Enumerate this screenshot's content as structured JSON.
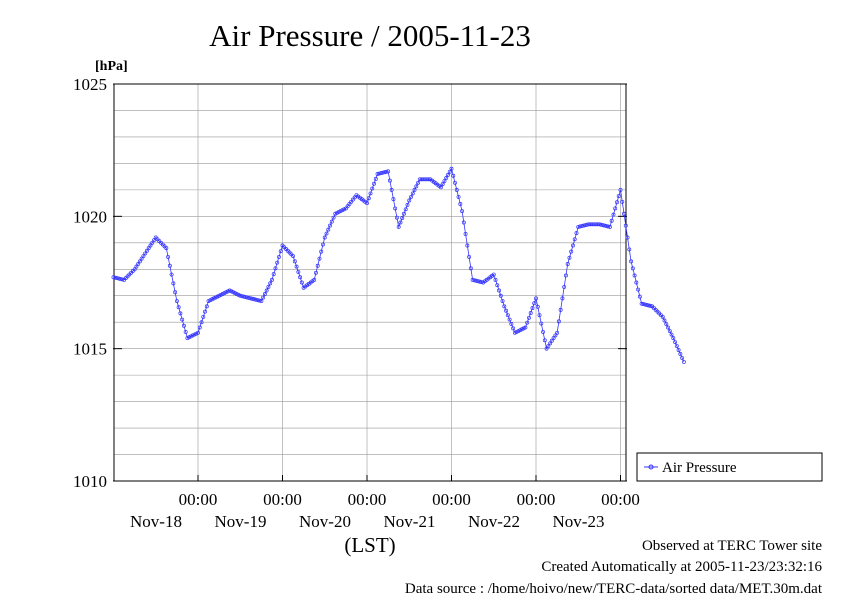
{
  "chart_data": {
    "type": "line",
    "title": "Air Pressure / 2005-11-23",
    "ylabel": "[hPa]",
    "xlabel": "(LST)",
    "ylim": [
      1010,
      1025
    ],
    "yticks": [
      {
        "value": 1010,
        "label": "1010"
      },
      {
        "value": 1015,
        "label": "1015"
      },
      {
        "value": 1020,
        "label": "1020"
      },
      {
        "value": 1025,
        "label": "1025"
      }
    ],
    "xticks": [
      {
        "time": "00:00",
        "date": "Nov-18"
      },
      {
        "time": "00:00",
        "date": "Nov-19"
      },
      {
        "time": "00:00",
        "date": "Nov-20"
      },
      {
        "time": "00:00",
        "date": "Nov-21"
      },
      {
        "time": "00:00",
        "date": "Nov-22"
      },
      {
        "time": "00:00",
        "date": "Nov-23"
      }
    ],
    "grid": true,
    "legend": "right",
    "color": "#3333ff",
    "series": [
      {
        "name": "Air Pressure",
        "points": [
          [
            "Nov-17 00:00",
            1017.7
          ],
          [
            "Nov-17 03:00",
            1017.6
          ],
          [
            "Nov-17 06:00",
            1018.0
          ],
          [
            "Nov-17 09:00",
            1018.6
          ],
          [
            "Nov-17 12:00",
            1019.2
          ],
          [
            "Nov-17 15:00",
            1018.8
          ],
          [
            "Nov-17 18:00",
            1016.8
          ],
          [
            "Nov-17 21:00",
            1015.4
          ],
          [
            "Nov-18 00:00",
            1015.6
          ],
          [
            "Nov-18 03:00",
            1016.8
          ],
          [
            "Nov-18 06:00",
            1017.0
          ],
          [
            "Nov-18 09:00",
            1017.2
          ],
          [
            "Nov-18 12:00",
            1017.0
          ],
          [
            "Nov-18 15:00",
            1016.9
          ],
          [
            "Nov-18 18:00",
            1016.8
          ],
          [
            "Nov-18 21:00",
            1017.6
          ],
          [
            "Nov-19 00:00",
            1018.9
          ],
          [
            "Nov-19 03:00",
            1018.5
          ],
          [
            "Nov-19 06:00",
            1017.3
          ],
          [
            "Nov-19 09:00",
            1017.6
          ],
          [
            "Nov-19 12:00",
            1019.2
          ],
          [
            "Nov-19 15:00",
            1020.1
          ],
          [
            "Nov-19 18:00",
            1020.3
          ],
          [
            "Nov-19 21:00",
            1020.8
          ],
          [
            "Nov-20 00:00",
            1020.5
          ],
          [
            "Nov-20 03:00",
            1021.6
          ],
          [
            "Nov-20 06:00",
            1021.7
          ],
          [
            "Nov-20 09:00",
            1019.6
          ],
          [
            "Nov-20 12:00",
            1020.6
          ],
          [
            "Nov-20 15:00",
            1021.4
          ],
          [
            "Nov-20 18:00",
            1021.4
          ],
          [
            "Nov-20 21:00",
            1021.1
          ],
          [
            "Nov-21 00:00",
            1021.8
          ],
          [
            "Nov-21 03:00",
            1020.2
          ],
          [
            "Nov-21 06:00",
            1017.6
          ],
          [
            "Nov-21 09:00",
            1017.5
          ],
          [
            "Nov-21 12:00",
            1017.8
          ],
          [
            "Nov-21 15:00",
            1016.6
          ],
          [
            "Nov-21 18:00",
            1015.6
          ],
          [
            "Nov-21 21:00",
            1015.8
          ],
          [
            "Nov-22 00:00",
            1016.9
          ],
          [
            "Nov-22 03:00",
            1015.0
          ],
          [
            "Nov-22 06:00",
            1015.6
          ],
          [
            "Nov-22 09:00",
            1018.2
          ],
          [
            "Nov-22 12:00",
            1019.6
          ],
          [
            "Nov-22 15:00",
            1019.7
          ],
          [
            "Nov-22 18:00",
            1019.7
          ],
          [
            "Nov-22 21:00",
            1019.6
          ],
          [
            "Nov-23 00:00",
            1021.0
          ],
          [
            "Nov-23 03:00",
            1018.3
          ],
          [
            "Nov-23 06:00",
            1016.7
          ],
          [
            "Nov-23 09:00",
            1016.6
          ],
          [
            "Nov-23 12:00",
            1016.2
          ],
          [
            "Nov-23 15:00",
            1015.4
          ],
          [
            "Nov-23 18:00",
            1014.5
          ]
        ]
      }
    ]
  },
  "footer": {
    "site": "Observed at TERC Tower site",
    "created": "Created Automatically at 2005-11-23/23:32:16",
    "source": "Data source : /home/hoivo/new/TERC-data/sorted  data/MET.30m.dat"
  }
}
